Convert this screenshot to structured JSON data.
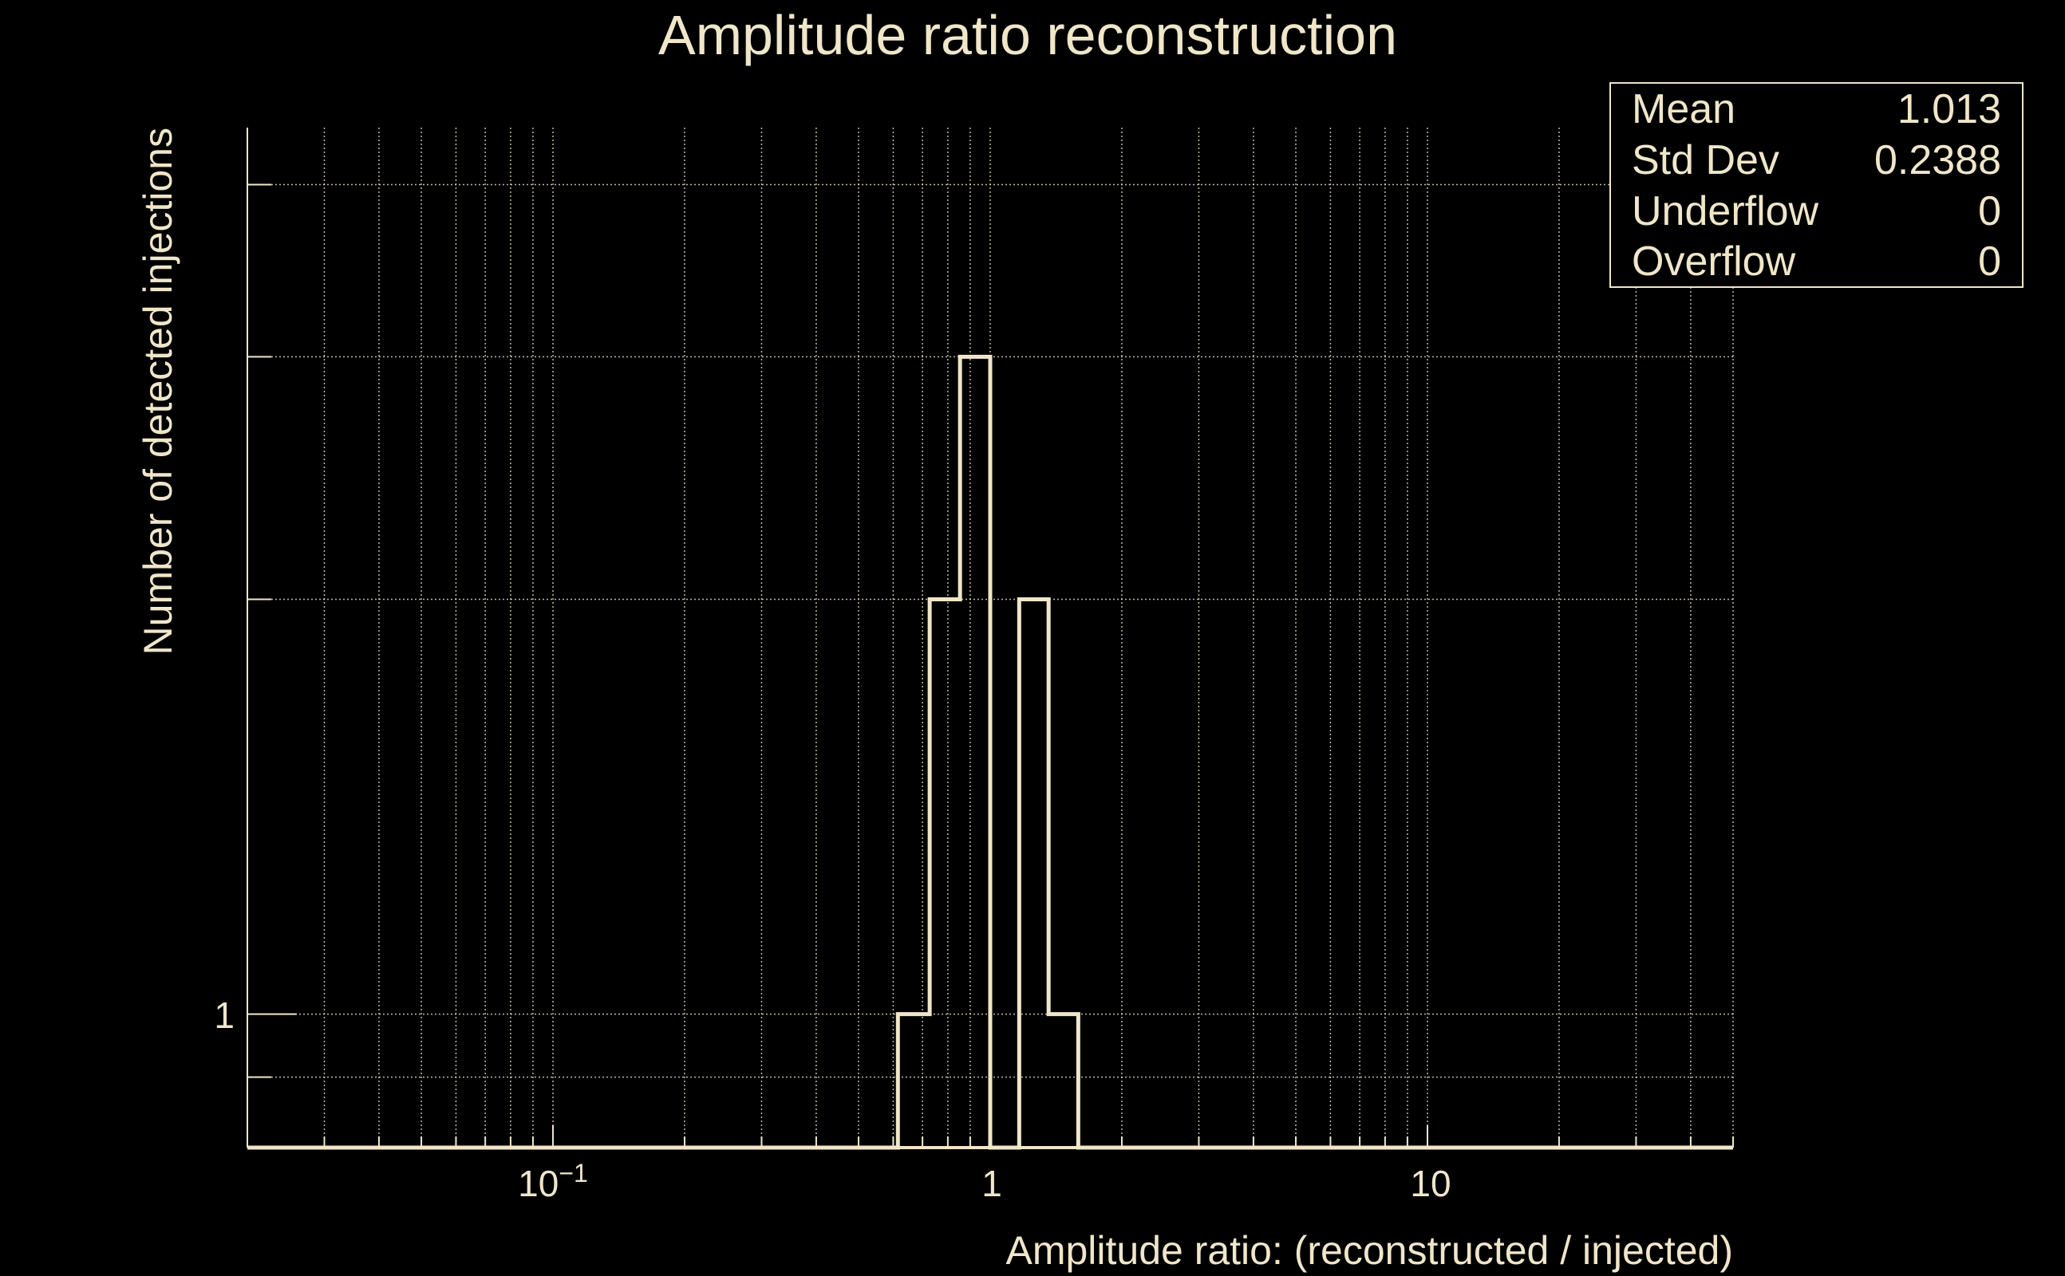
{
  "colors": {
    "foreground": "#f0e6c8",
    "background": "#000000"
  },
  "chart_data": {
    "type": "bar",
    "title": "Amplitude ratio reconstruction",
    "xlabel": "Amplitude ratio: (reconstructed / injected)",
    "ylabel": "Number of detected injections",
    "xscale": "log",
    "yscale": "log",
    "xlim": [
      0.02,
      50
    ],
    "ylim": [
      0.8,
      4.4
    ],
    "grid": true,
    "x_tick_labels": [
      {
        "value": 0.1,
        "label": "10",
        "exponent": "−1"
      },
      {
        "value": 1,
        "label": "1",
        "exponent": ""
      },
      {
        "value": 10,
        "label": "10",
        "exponent": ""
      }
    ],
    "y_tick_labels": [
      {
        "value": 1,
        "label": "1"
      }
    ],
    "y_gridlines": [
      0.9,
      1,
      2,
      3,
      4
    ],
    "bin_edges": [
      0.615,
      0.727,
      0.853,
      1.0,
      1.165,
      1.36,
      1.59
    ],
    "counts": [
      1,
      2,
      3,
      0,
      2,
      1
    ],
    "stats_box": {
      "position": "top-right",
      "rows": [
        {
          "label": "Mean",
          "value": "1.013"
        },
        {
          "label": "Std Dev",
          "value": "0.2388"
        },
        {
          "label": "Underflow",
          "value": "0"
        },
        {
          "label": "Overflow",
          "value": "0"
        }
      ]
    }
  }
}
